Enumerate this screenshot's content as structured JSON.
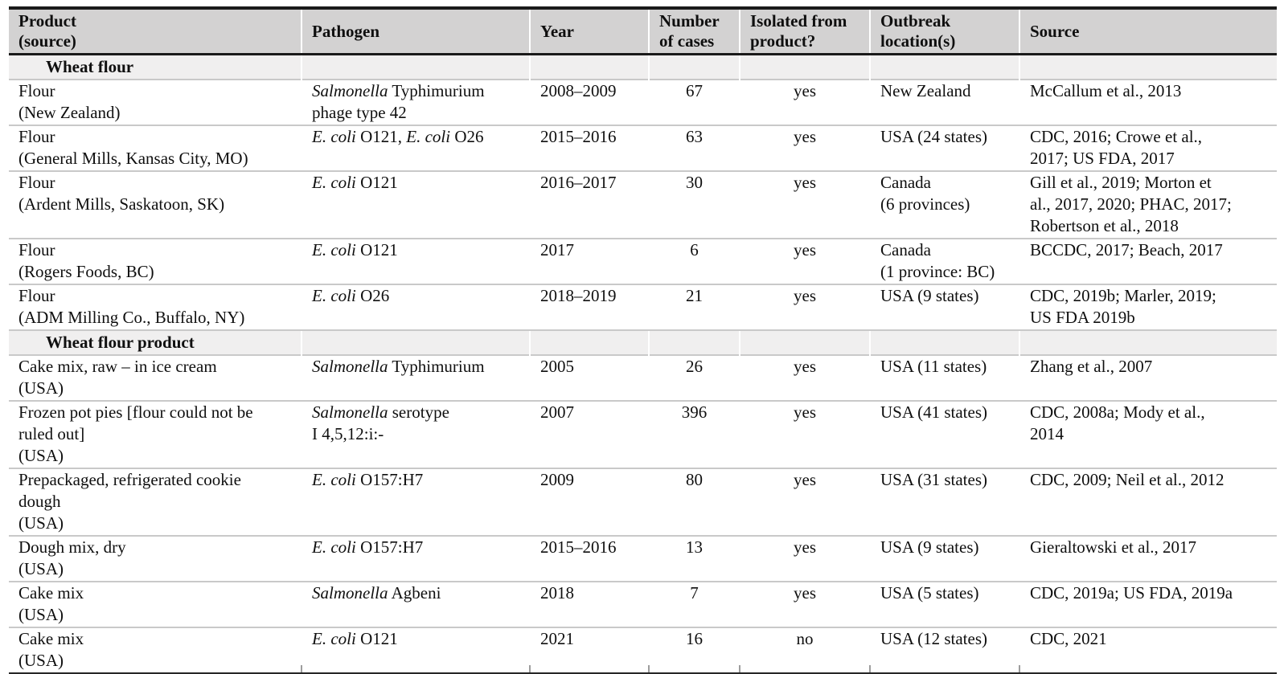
{
  "table": {
    "columns": [
      {
        "id": "product",
        "label": [
          "Product",
          "(source)"
        ]
      },
      {
        "id": "pathogen",
        "label": [
          "Pathogen"
        ]
      },
      {
        "id": "year",
        "label": [
          "Year"
        ]
      },
      {
        "id": "cases",
        "label": [
          "Number",
          "of cases"
        ]
      },
      {
        "id": "isolated",
        "label": [
          "Isolated from",
          "product?"
        ]
      },
      {
        "id": "location",
        "label": [
          "Outbreak",
          "location(s)"
        ]
      },
      {
        "id": "source",
        "label": [
          "Source"
        ]
      }
    ],
    "rows": [
      {
        "type": "section",
        "label": "Wheat flour"
      },
      {
        "type": "data",
        "product": [
          "Flour",
          "(New Zealand)"
        ],
        "pathogen": [
          [
            {
              "t": "Salmonella",
              "i": true
            },
            {
              "t": " Typhimurium",
              "i": false
            }
          ],
          [
            {
              "t": "phage type 42",
              "i": false
            }
          ]
        ],
        "year": "2008–2009",
        "cases": "67",
        "isolated": "yes",
        "location": [
          "New Zealand"
        ],
        "source": [
          "McCallum et al., 2013"
        ]
      },
      {
        "type": "data",
        "product": [
          "Flour",
          "(General Mills, Kansas City, MO)"
        ],
        "pathogen": [
          [
            {
              "t": "E. coli",
              "i": true
            },
            {
              "t": " O121, ",
              "i": false
            },
            {
              "t": "E. coli",
              "i": true
            },
            {
              "t": " O26",
              "i": false
            }
          ]
        ],
        "year": "2015–2016",
        "cases": "63",
        "isolated": "yes",
        "location": [
          "USA (24 states)"
        ],
        "source": [
          "CDC, 2016; Crowe et al.,",
          "2017; US FDA, 2017"
        ]
      },
      {
        "type": "data",
        "product": [
          "Flour",
          "(Ardent Mills, Saskatoon, SK)"
        ],
        "pathogen": [
          [
            {
              "t": "E. coli",
              "i": true
            },
            {
              "t": " O121",
              "i": false
            }
          ]
        ],
        "year": "2016–2017",
        "cases": "30",
        "isolated": "yes",
        "location": [
          "Canada",
          "(6 provinces)"
        ],
        "source": [
          "Gill et al., 2019; Morton et",
          "al., 2017, 2020; PHAC, 2017;",
          "Robertson et al., 2018"
        ]
      },
      {
        "type": "data",
        "product": [
          "Flour",
          "(Rogers Foods, BC)"
        ],
        "pathogen": [
          [
            {
              "t": "E. coli",
              "i": true
            },
            {
              "t": " O121",
              "i": false
            }
          ]
        ],
        "year": "2017",
        "cases": "6",
        "isolated": "yes",
        "location": [
          "Canada",
          "(1 province: BC)"
        ],
        "source": [
          "BCCDC, 2017; Beach, 2017"
        ]
      },
      {
        "type": "data",
        "product": [
          "Flour",
          "(ADM Milling Co., Buffalo, NY)"
        ],
        "pathogen": [
          [
            {
              "t": "E. coli",
              "i": true
            },
            {
              "t": " O26",
              "i": false
            }
          ]
        ],
        "year": "2018–2019",
        "cases": "21",
        "isolated": "yes",
        "location": [
          "USA (9 states)"
        ],
        "source": [
          "CDC, 2019b; Marler, 2019;",
          "US FDA 2019b"
        ]
      },
      {
        "type": "section",
        "label": "Wheat flour product"
      },
      {
        "type": "data",
        "product": [
          "Cake mix, raw – in ice cream",
          "(USA)"
        ],
        "pathogen": [
          [
            {
              "t": "Salmonella",
              "i": true
            },
            {
              "t": " Typhimurium",
              "i": false
            }
          ]
        ],
        "year": "2005",
        "cases": "26",
        "isolated": "yes",
        "location": [
          "USA (11 states)"
        ],
        "source": [
          "Zhang et al., 2007"
        ]
      },
      {
        "type": "data",
        "product": [
          "Frozen pot pies [flour could not be",
          "ruled out]",
          "(USA)"
        ],
        "pathogen": [
          [
            {
              "t": "Salmonella",
              "i": true
            },
            {
              "t": " serotype",
              "i": false
            }
          ],
          [
            {
              "t": "I 4,5,12:i:-",
              "i": false
            }
          ]
        ],
        "year": "2007",
        "cases": "396",
        "isolated": "yes",
        "location": [
          "USA (41 states)"
        ],
        "source": [
          "CDC, 2008a; Mody et al.,",
          "2014"
        ]
      },
      {
        "type": "data",
        "product": [
          "Prepackaged, refrigerated cookie",
          "dough",
          "(USA)"
        ],
        "pathogen": [
          [
            {
              "t": "E. coli",
              "i": true
            },
            {
              "t": " O157:H7",
              "i": false
            }
          ]
        ],
        "year": "2009",
        "cases": "80",
        "isolated": "yes",
        "location": [
          "USA (31 states)"
        ],
        "source": [
          "CDC, 2009; Neil et al., 2012"
        ]
      },
      {
        "type": "data",
        "product": [
          "Dough mix, dry",
          "(USA)"
        ],
        "pathogen": [
          [
            {
              "t": "E. coli",
              "i": true
            },
            {
              "t": " O157:H7",
              "i": false
            }
          ]
        ],
        "year": "2015–2016",
        "cases": "13",
        "isolated": "yes",
        "location": [
          "USA (9 states)"
        ],
        "source": [
          "Gieraltowski et al., 2017"
        ]
      },
      {
        "type": "data",
        "product": [
          "Cake mix",
          "(USA)"
        ],
        "pathogen": [
          [
            {
              "t": "Salmonella",
              "i": true
            },
            {
              "t": " Agbeni",
              "i": false
            }
          ]
        ],
        "year": "2018",
        "cases": "7",
        "isolated": "yes",
        "location": [
          "USA (5 states)"
        ],
        "source": [
          "CDC, 2019a; US FDA, 2019a"
        ]
      },
      {
        "type": "data",
        "product": [
          "Cake mix",
          "(USA)"
        ],
        "pathogen": [
          [
            {
              "t": "E. coli",
              "i": true
            },
            {
              "t": " O121",
              "i": false
            }
          ]
        ],
        "year": "2021",
        "cases": "16",
        "isolated": "no",
        "location": [
          "USA (12 states)"
        ],
        "source": [
          "CDC, 2021"
        ]
      }
    ],
    "colors": {
      "header_bg": "#d3d2d2",
      "section_bg": "#f0efef",
      "rule_dark": "#1a1a1a",
      "rule_light": "#c9c9c9"
    }
  }
}
